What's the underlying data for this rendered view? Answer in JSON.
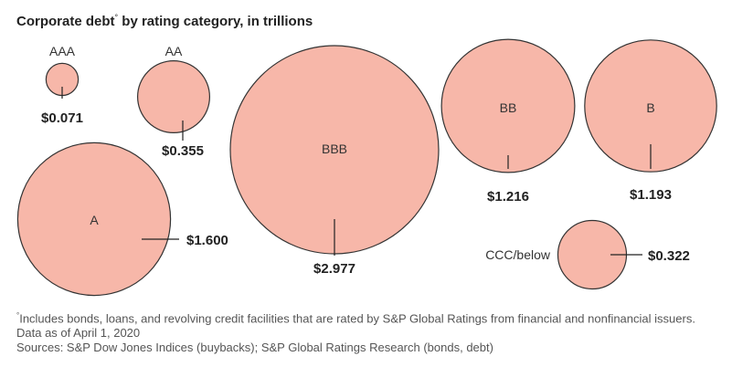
{
  "title": "Corporate debt",
  "title_marker": "°",
  "title_rest": " by rating category, in trillions",
  "footnote_marker": "°",
  "footnote": "Includes bonds, loans, and revolving credit facilities that are rated by S&P Global Ratings from financial and nonfinancial issuers. Data as of April 1, 2020",
  "sources": "Sources: S&P Dow Jones Indices (buybacks); S&P Global Ratings Research (bonds, debt)",
  "colors": {
    "bubble_fill": "#f7b7a9",
    "bubble_stroke": "#333333"
  },
  "chart_data": {
    "type": "bubble",
    "title": "Corporate debt° by rating category, in trillions",
    "categories": [
      "AAA",
      "AA",
      "BBB",
      "BB",
      "B",
      "A",
      "CCC/below"
    ],
    "values": [
      0.071,
      0.355,
      2.977,
      1.216,
      1.193,
      1.6,
      0.322
    ],
    "value_labels": [
      "$0.071",
      "$0.355",
      "$2.977",
      "$1.216",
      "$1.193",
      "$1.600",
      "$0.322"
    ]
  }
}
